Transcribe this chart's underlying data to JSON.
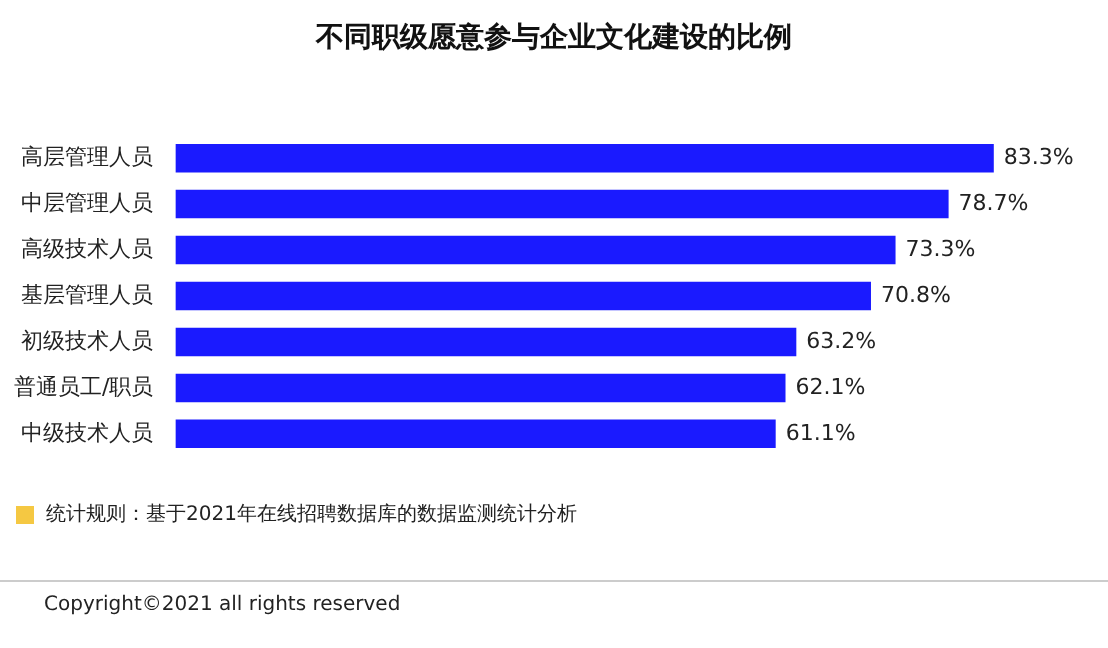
{
  "chart_data": {
    "type": "bar",
    "orientation": "horizontal",
    "title": "不同职级愿意参与企业文化建设的比例",
    "categories": [
      "高层管理人员",
      "中层管理人员",
      "高级技术人员",
      "基层管理人员",
      "初级技术人员",
      "普通员工/职员",
      "中级技术人员"
    ],
    "values": [
      83.3,
      78.7,
      73.3,
      70.8,
      63.2,
      62.1,
      61.1
    ],
    "value_labels": [
      "83.3%",
      "78.7%",
      "73.3%",
      "70.8%",
      "63.2%",
      "62.1%",
      "61.1%"
    ],
    "color": "#1a1aff",
    "legend": false,
    "annotations": [
      "统计规则：基于2021年在线招聘数据库的数据监测统计分析",
      "Copyright©2021 all rights reserved"
    ]
  }
}
